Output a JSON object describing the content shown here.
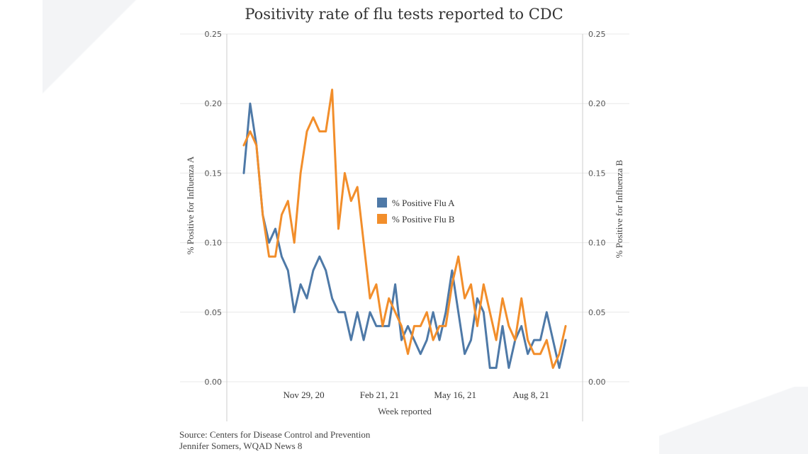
{
  "colors": {
    "flu_a": "#4e79a7",
    "flu_b": "#f28e2b",
    "grid": "#e8e8e8",
    "axis": "#cccccc"
  },
  "source": {
    "line1": "Source: Centers for Disease Control and Prevention",
    "line2": "Jennifer Somers, WQAD News 8"
  },
  "chart_data": {
    "type": "line",
    "title": "Positivity rate of flu tests reported to CDC",
    "xlabel": "Week reported",
    "ylabel_left": "% Positive for Influenza A",
    "ylabel_right": "% Positive for Influenza B",
    "ylim": [
      0,
      0.25
    ],
    "yticks": [
      "0.00",
      "0.05",
      "0.10",
      "0.15",
      "0.20",
      "0.25"
    ],
    "ytick_values": [
      0,
      0.05,
      0.1,
      0.15,
      0.2,
      0.25
    ],
    "xticks": [
      {
        "label": "Nov 29, 20",
        "index": 9.5
      },
      {
        "label": "Feb 21, 21",
        "index": 21.5
      },
      {
        "label": "May 16, 21",
        "index": 33.5
      },
      {
        "label": "Aug 8, 21",
        "index": 45.5
      }
    ],
    "grid": true,
    "legend_position": "center",
    "series": [
      {
        "name": "% Positive Flu A",
        "values": [
          0.15,
          0.2,
          0.17,
          0.12,
          0.1,
          0.11,
          0.09,
          0.08,
          0.05,
          0.07,
          0.06,
          0.08,
          0.09,
          0.08,
          0.06,
          0.05,
          0.05,
          0.03,
          0.05,
          0.03,
          0.05,
          0.04,
          0.04,
          0.04,
          0.07,
          0.03,
          0.04,
          0.03,
          0.02,
          0.03,
          0.05,
          0.03,
          0.05,
          0.08,
          0.05,
          0.02,
          0.03,
          0.06,
          0.05,
          0.01,
          0.01,
          0.04,
          0.01,
          0.03,
          0.04,
          0.02,
          0.03,
          0.03,
          0.05,
          0.03,
          0.01,
          0.03
        ]
      },
      {
        "name": "% Positive Flu B",
        "values": [
          0.17,
          0.18,
          0.17,
          0.12,
          0.09,
          0.09,
          0.12,
          0.13,
          0.1,
          0.15,
          0.18,
          0.19,
          0.18,
          0.18,
          0.21,
          0.11,
          0.15,
          0.13,
          0.14,
          0.1,
          0.06,
          0.07,
          0.04,
          0.06,
          0.05,
          0.04,
          0.02,
          0.04,
          0.04,
          0.05,
          0.03,
          0.04,
          0.04,
          0.07,
          0.09,
          0.06,
          0.07,
          0.04,
          0.07,
          0.05,
          0.03,
          0.06,
          0.04,
          0.03,
          0.06,
          0.03,
          0.02,
          0.02,
          0.03,
          0.01,
          0.02,
          0.04
        ]
      }
    ]
  }
}
